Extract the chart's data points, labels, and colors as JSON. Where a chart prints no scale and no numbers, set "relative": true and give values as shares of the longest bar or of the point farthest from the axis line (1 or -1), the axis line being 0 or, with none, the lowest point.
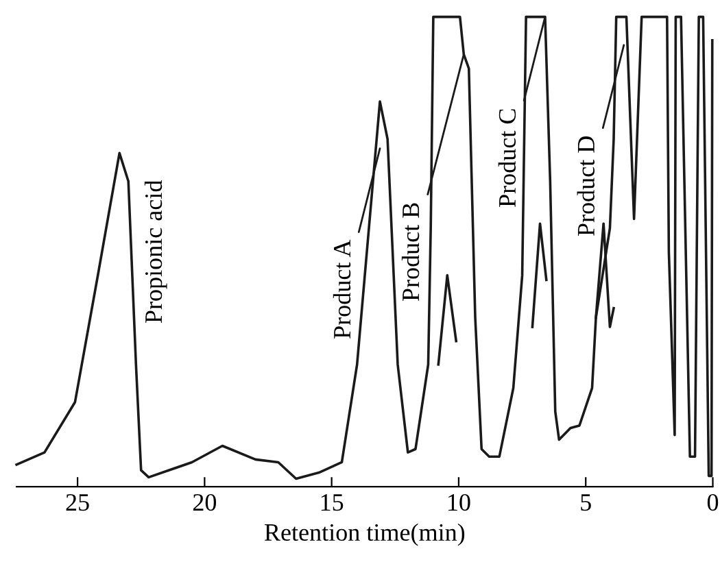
{
  "chart_data": {
    "type": "line",
    "relative": true,
    "xlabel": "Retention time(min)",
    "xlim": [
      27.4,
      0
    ],
    "xticks": [
      25,
      20,
      15,
      10,
      5,
      0
    ],
    "grid": false,
    "legend": false,
    "marker": "none",
    "line_style": "solid",
    "series": [
      {
        "color": "#1a1a1a",
        "x": [
          27.4,
          26.3,
          25.1,
          24.2,
          23.35,
          23.0,
          22.7,
          22.5,
          22.2,
          20.5,
          19.3,
          18.0,
          17.1,
          16.4,
          15.5,
          14.6,
          14.0,
          13.1,
          12.8,
          12.4,
          12.0,
          11.7,
          11.2,
          11.1,
          11.0,
          9.95,
          9.8,
          9.6,
          9.35,
          9.1,
          8.8,
          8.4,
          7.85,
          7.5,
          7.35,
          6.6,
          6.4,
          6.2,
          6.05,
          5.6,
          5.25,
          4.75,
          4.6,
          4.05,
          3.9,
          3.8,
          3.4,
          3.1,
          2.8,
          1.8,
          1.73,
          1.5,
          1.46,
          1.25,
          0.9,
          0.7,
          0.55,
          0.38,
          0.16,
          0.05,
          0.02
        ],
        "values": [
          0.047,
          0.073,
          0.18,
          0.45,
          0.71,
          0.65,
          0.26,
          0.035,
          0.02,
          0.052,
          0.087,
          0.058,
          0.052,
          0.017,
          0.03,
          0.052,
          0.26,
          0.82,
          0.74,
          0.26,
          0.073,
          0.08,
          0.26,
          0.55,
          1.0,
          1.0,
          0.92,
          0.89,
          0.36,
          0.08,
          0.064,
          0.064,
          0.21,
          0.45,
          1.0,
          1.0,
          0.65,
          0.16,
          0.1,
          0.125,
          0.13,
          0.21,
          0.36,
          0.55,
          0.74,
          1.0,
          1.0,
          0.57,
          1.0,
          1.0,
          0.5,
          0.11,
          1.0,
          1.0,
          0.064,
          0.064,
          1.0,
          1.0,
          0.023,
          0.023,
          0.95
        ]
      },
      {
        "color": "#1a1a1a",
        "x": [
          10.8,
          10.45,
          10.1
        ],
        "values": [
          0.26,
          0.45,
          0.31
        ]
      },
      {
        "color": "#1a1a1a",
        "x": [
          7.1,
          6.8,
          6.55
        ],
        "values": [
          0.34,
          0.56,
          0.44
        ]
      },
      {
        "color": "#1a1a1a",
        "x": [
          4.6,
          4.3,
          4.05,
          3.9
        ],
        "values": [
          0.36,
          0.56,
          0.34,
          0.38
        ]
      }
    ],
    "annotations": [
      "Propionic acid",
      {
        "text": "Product A",
        "x": 13.1,
        "y": 0.72
      },
      {
        "text": "Product B",
        "x": 9.8,
        "y": 0.92
      },
      {
        "text": "Product C",
        "x": 6.6,
        "y": 1.0
      },
      {
        "text": "Product D",
        "x": 3.5,
        "y": 0.94
      }
    ]
  }
}
